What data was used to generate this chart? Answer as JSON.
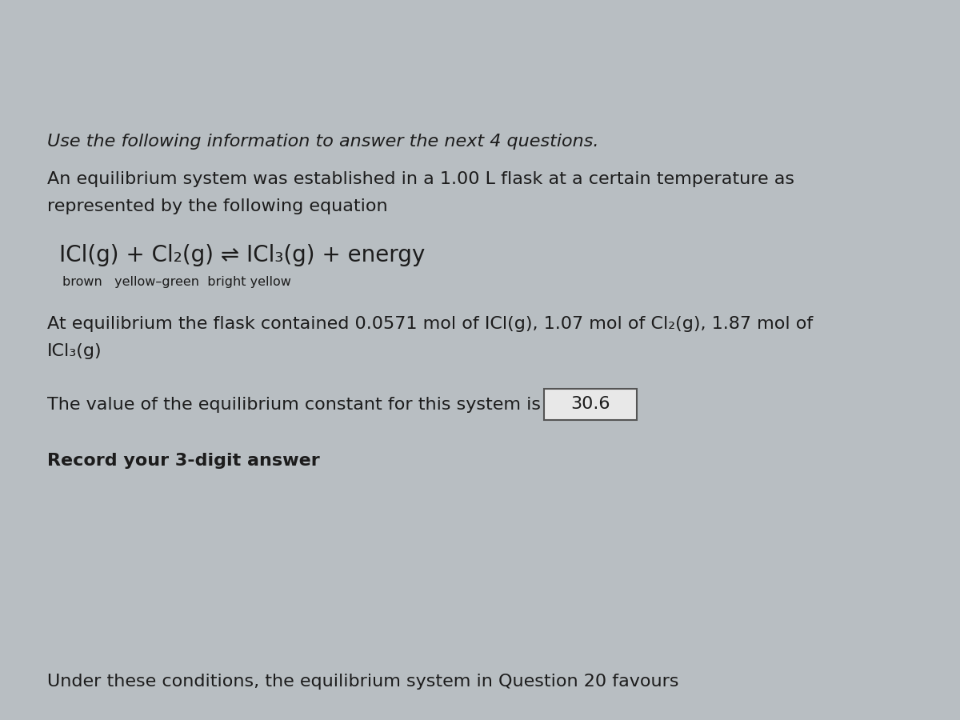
{
  "bg_outer": "#b8bec2",
  "bg_top_stripe": "#adb5ba",
  "bg_main": "#e4e4e3",
  "bg_bottom": "#c8c8c8",
  "text_color": "#1c1c1c",
  "line1_italic": "Use the following information to answer the next 4 questions.",
  "line2": "An equilibrium system was established in a 1.00 L flask at a certain temperature as",
  "line3": "represented by the following equation",
  "equation": "ICl(g) + Cl₂(g) ⇌ ICl₃(g) + energy",
  "colors_label": "brown   yellow–green  bright yellow",
  "line4": "At equilibrium the flask contained 0.0571 mol of ICl(g), 1.07 mol of Cl₂(g), 1.87 mol of",
  "line5": "ICl₃(g)",
  "line6": "The value of the equilibrium constant for this system is",
  "answer_box": "30.6",
  "bold_line": "Record your 3-digit answer",
  "bottom_line": "Under these conditions, the equilibrium system in Question 20 favours",
  "fs_main": 16,
  "fs_eq": 20,
  "fs_colors": 11.5
}
